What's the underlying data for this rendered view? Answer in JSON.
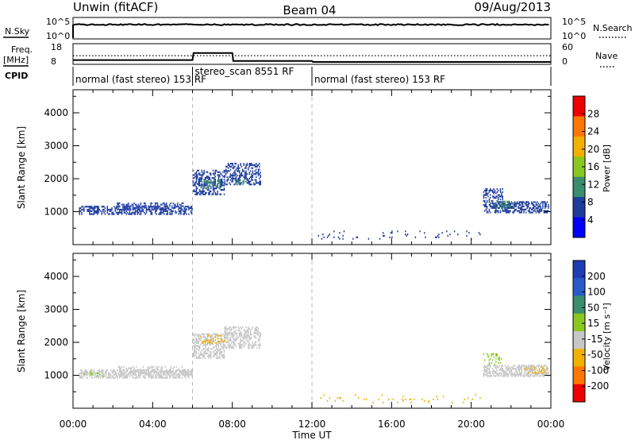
{
  "chart_data": {
    "type": "heatmap",
    "header": {
      "station": "Unwin (fitACF)",
      "beam": "Beam 04",
      "date": "09/Aug/2013"
    },
    "status_panels": {
      "nsky_label": "N.Sky",
      "nsky_ticks": [
        "10^5",
        "10^0"
      ],
      "nsearch_label": "N.Search",
      "freq_label": "Freq.",
      "freq_unit": "[MHz]",
      "freq_ticks": [
        "18",
        "8"
      ],
      "nave_ticks": [
        "60",
        "0"
      ],
      "nave_label": "Nave",
      "cpid_label": "CPID",
      "freq_hours": [
        0,
        6,
        6.05,
        8,
        8.05,
        12,
        12.05,
        24
      ],
      "freq_values": [
        10.0,
        10.0,
        14.0,
        14.0,
        9.5,
        9.5,
        8.9,
        8.9
      ],
      "nave_hours": [
        0,
        6,
        6.05,
        24
      ],
      "nave_values": [
        12.5,
        12.5,
        12.5,
        12.5
      ]
    },
    "cpid_segments": [
      {
        "start": 0,
        "end": 6,
        "label": "normal (fast stereo) 153 RF"
      },
      {
        "start": 6,
        "end": 12,
        "label": "stereo_scan 8551 RF"
      },
      {
        "start": 12,
        "end": 24,
        "label": "normal (fast stereo) 153 RF"
      }
    ],
    "mode_change_hours": [
      6,
      12
    ],
    "xlabel": "Time UT",
    "x_ticks": [
      "00:00",
      "04:00",
      "08:00",
      "12:00",
      "16:00",
      "20:00",
      "00:00"
    ],
    "x_range_hours": [
      0,
      24
    ],
    "ylabel": "Slant Range [km]",
    "y_ticks": [
      1000,
      2000,
      3000,
      4000
    ],
    "ylim": [
      0,
      4700
    ],
    "panels": [
      {
        "name": "Power",
        "colorbar_label": "Power [dB]",
        "colorbar_ticks": [
          "28",
          "24",
          "20",
          "16",
          "12",
          "8",
          "4"
        ],
        "colorbar_colors": [
          "#ee0000",
          "#ff7700",
          "#f2b000",
          "#88c820",
          "#3c8c6e",
          "#1e3c9c",
          "#0000ff"
        ],
        "bands": [
          {
            "hours": [
              0.3,
              6.0
            ],
            "range_start": 900,
            "range_end": 1150,
            "color": "#1e3c9c",
            "density": 0.55
          },
          {
            "hours": [
              2.2,
              5.8
            ],
            "range_start": 1050,
            "range_end": 1250,
            "color": "#2a48b0",
            "density": 0.35
          },
          {
            "hours": [
              6.0,
              7.6
            ],
            "range_start": 1500,
            "range_end": 2250,
            "color": "#1e3c9c",
            "density": 0.5
          },
          {
            "hours": [
              6.4,
              7.4
            ],
            "range_start": 1700,
            "range_end": 1950,
            "color": "#3c8c6e",
            "density": 0.35
          },
          {
            "hours": [
              7.6,
              9.4
            ],
            "range_start": 1800,
            "range_end": 2450,
            "color": "#1e3c9c",
            "density": 0.45
          },
          {
            "hours": [
              8.0,
              8.6
            ],
            "range_start": 1800,
            "range_end": 1950,
            "color": "#3c8c6e",
            "density": 0.3
          },
          {
            "hours": [
              20.6,
              23.9
            ],
            "range_start": 950,
            "range_end": 1300,
            "color": "#1e3c9c",
            "density": 0.55
          },
          {
            "hours": [
              20.6,
              21.6
            ],
            "range_start": 1300,
            "range_end": 1700,
            "color": "#1e3c9c",
            "density": 0.4
          },
          {
            "hours": [
              21.0,
              22.2
            ],
            "range_start": 1100,
            "range_end": 1300,
            "color": "#3c8c6e",
            "density": 0.25
          },
          {
            "hours": [
              12.3,
              20.5
            ],
            "range_start": 150,
            "range_end": 400,
            "color": "#1e3c9c",
            "density": 0.05
          }
        ]
      },
      {
        "name": "Velocity",
        "colorbar_label": "Velocity [m s⁻¹]",
        "colorbar_ticks": [
          "200",
          "100",
          "50",
          "15",
          "-15",
          "-50",
          "-100",
          "-200"
        ],
        "colorbar_colors": [
          "#1e3cb4",
          "#2a5ac8",
          "#3c8c6e",
          "#88c820",
          "#c8c8c8",
          "#f2b000",
          "#ff7700",
          "#ee0000"
        ],
        "bands": [
          {
            "hours": [
              0.3,
              6.0
            ],
            "range_start": 900,
            "range_end": 1150,
            "color": "#c8c8c8",
            "density": 0.6
          },
          {
            "hours": [
              2.2,
              5.8
            ],
            "range_start": 1050,
            "range_end": 1250,
            "color": "#c8c8c8",
            "density": 0.35
          },
          {
            "hours": [
              6.0,
              7.6
            ],
            "range_start": 1500,
            "range_end": 2250,
            "color": "#c8c8c8",
            "density": 0.55
          },
          {
            "hours": [
              6.4,
              7.6
            ],
            "range_start": 1950,
            "range_end": 2200,
            "color": "#f2b000",
            "density": 0.25
          },
          {
            "hours": [
              7.6,
              9.4
            ],
            "range_start": 1800,
            "range_end": 2450,
            "color": "#c8c8c8",
            "density": 0.5
          },
          {
            "hours": [
              20.6,
              23.9
            ],
            "range_start": 950,
            "range_end": 1300,
            "color": "#c8c8c8",
            "density": 0.6
          },
          {
            "hours": [
              20.6,
              21.6
            ],
            "range_start": 1300,
            "range_end": 1700,
            "color": "#88c820",
            "density": 0.2
          },
          {
            "hours": [
              22.5,
              23.8
            ],
            "range_start": 1050,
            "range_end": 1250,
            "color": "#f2b000",
            "density": 0.2
          },
          {
            "hours": [
              0.3,
              1.5
            ],
            "range_start": 950,
            "range_end": 1100,
            "color": "#88c820",
            "density": 0.15
          },
          {
            "hours": [
              12.3,
              20.5
            ],
            "range_start": 150,
            "range_end": 400,
            "color": "#f2b000",
            "density": 0.05
          }
        ]
      }
    ]
  }
}
